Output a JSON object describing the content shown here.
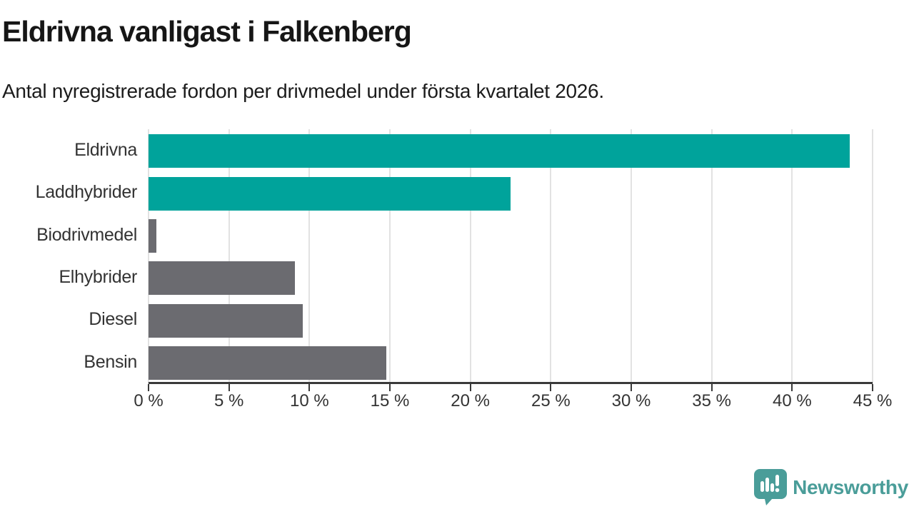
{
  "header": {
    "title": "Eldrivna vanligast i Falkenberg",
    "subtitle": "Antal nyregistrerade fordon per drivmedel under första kvartalet 2026."
  },
  "chart_data": {
    "type": "bar",
    "orientation": "horizontal",
    "title": "Eldrivna vanligast i Falkenberg",
    "subtitle": "Antal nyregistrerade fordon per drivmedel under första kvartalet 2026.",
    "categories": [
      "Eldrivna",
      "Laddhybrider",
      "Biodrivmedel",
      "Elhybrider",
      "Diesel",
      "Bensin"
    ],
    "values": [
      43.6,
      22.5,
      0.5,
      9.1,
      9.6,
      14.8
    ],
    "unit": "%",
    "bar_colors": [
      "#00a39b",
      "#00a39b",
      "#6b6b70",
      "#6b6b70",
      "#6b6b70",
      "#6b6b70"
    ],
    "xlabel": "",
    "ylabel": "",
    "xlim": [
      0,
      45
    ],
    "x_ticks": [
      0,
      5,
      10,
      15,
      20,
      25,
      30,
      35,
      40,
      45
    ],
    "x_tick_labels": [
      "0 %",
      "5 %",
      "10 %",
      "15 %",
      "20 %",
      "25 %",
      "30 %",
      "35 %",
      "40 %",
      "45 %"
    ],
    "grid": "vertical-on",
    "legend": "none"
  },
  "colors": {
    "accent_teal": "#00a39b",
    "neutral_gray": "#6b6b70",
    "gridline": "#e2e2e2",
    "axis": "#3a3a3a",
    "text": "#333333",
    "brand_teal": "#4a9d99"
  },
  "footer": {
    "brand": "Newsworthy",
    "logo_icon": "newsworthy-speech-bubble-chart-icon"
  }
}
